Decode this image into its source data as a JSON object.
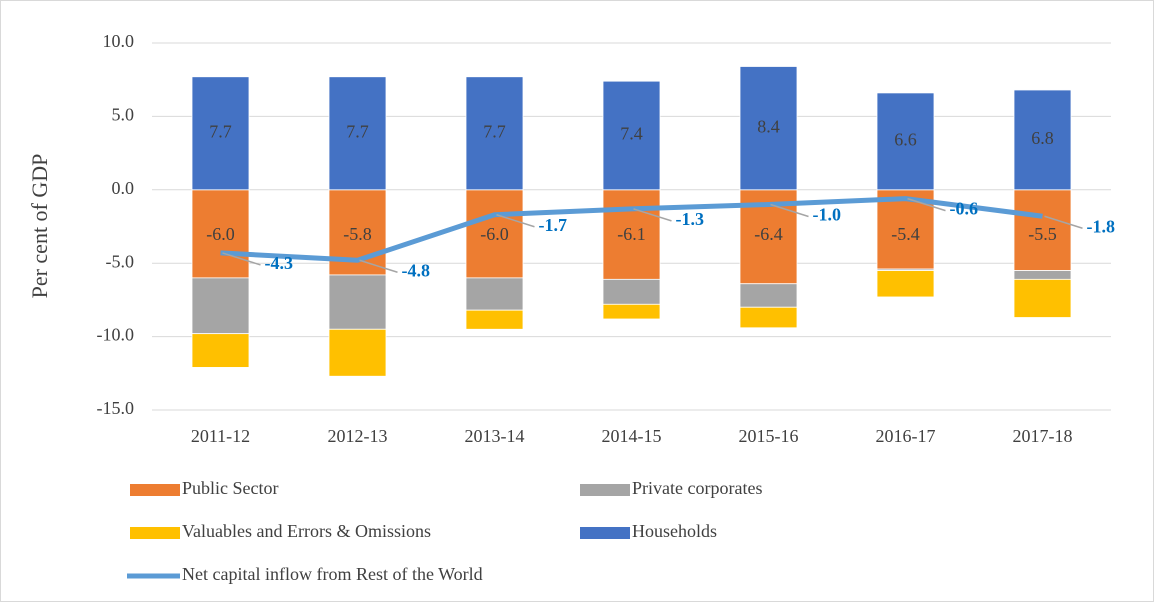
{
  "chart_data": {
    "type": "bar",
    "y_axis_label": "Per cent of GDP",
    "categories": [
      "2011-12",
      "2012-13",
      "2013-14",
      "2014-15",
      "2015-16",
      "2016-17",
      "2017-18"
    ],
    "ylim": [
      -15,
      10
    ],
    "yticks": [
      {
        "value": -15,
        "label": "-15.0"
      },
      {
        "value": -10,
        "label": "-10.0"
      },
      {
        "value": -5,
        "label": "-5.0"
      },
      {
        "value": 0,
        "label": "0.0"
      },
      {
        "value": 5,
        "label": "5.0"
      },
      {
        "value": 10,
        "label": "10.0"
      }
    ],
    "grid": true,
    "series": [
      {
        "name": "Public Sector",
        "type": "bar",
        "color": "#ed7d31",
        "values": [
          -6.0,
          -5.8,
          -6.0,
          -6.1,
          -6.4,
          -5.4,
          -5.5
        ],
        "value_labels": [
          "-6.0",
          "-5.8",
          "-6.0",
          "-6.1",
          "-6.4",
          "-5.4",
          "-5.5"
        ]
      },
      {
        "name": "Private corporates",
        "type": "bar",
        "color": "#a5a5a5",
        "values": [
          -3.8,
          -3.7,
          -2.2,
          -1.7,
          -1.6,
          -0.1,
          -0.6
        ]
      },
      {
        "name": "Valuables and Errors & Omissions",
        "type": "bar",
        "color": "#ffc000",
        "values": [
          -2.3,
          -3.2,
          -1.3,
          -1.0,
          -1.4,
          -1.8,
          -2.6
        ]
      },
      {
        "name": "Households",
        "type": "bar",
        "color": "#4472c4",
        "values": [
          7.7,
          7.7,
          7.7,
          7.4,
          8.4,
          6.6,
          6.8
        ],
        "value_labels": [
          "7.7",
          "7.7",
          "7.7",
          "7.4",
          "8.4",
          "6.6",
          "6.8"
        ]
      },
      {
        "name": "Net capital inflow from Rest of the World",
        "type": "line",
        "color": "#5b9bd5",
        "values": [
          -4.3,
          -4.8,
          -1.7,
          -1.3,
          -1.0,
          -0.6,
          -1.8
        ],
        "value_labels": [
          "-4.3",
          "-4.8",
          "-1.7",
          "-1.3",
          "-1.0",
          "-0.6",
          "-1.8"
        ]
      }
    ]
  }
}
